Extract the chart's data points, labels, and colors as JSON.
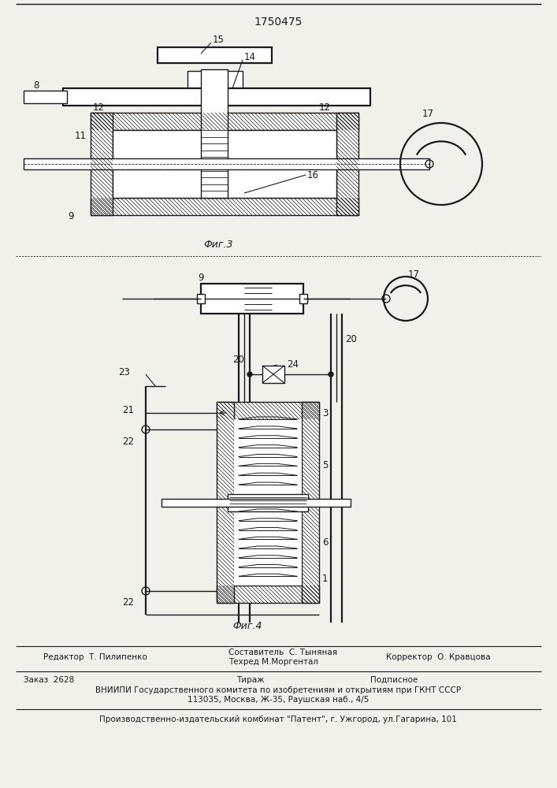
{
  "title": "1750475",
  "fig3_label": "Фиг.3",
  "fig4_label": "Фиг.4",
  "bg_color": "#f2f0eb",
  "line_color": "#1a1a1a",
  "footer_left": "Редактор  Т. Пилипенко",
  "footer_mid1": "Составитель  С. Тыняная",
  "footer_mid2": "Техред М.Моргентал",
  "footer_right": "Корректор  О. Кравцова",
  "footer_order": "Заказ  2628",
  "footer_tirazh": "Тираж",
  "footer_podp": "Подписное",
  "footer_vniip": "ВНИИПИ Государственного комитета по изобретениям и открытиям при ГКНТ СССР",
  "footer_addr": "113035, Москва, Ж-35, Раушская наб., 4/5",
  "footer_patent": "Производственно-издательский комбинат \"Патент\", г. Ужгород, ул.Гагарина, 101"
}
